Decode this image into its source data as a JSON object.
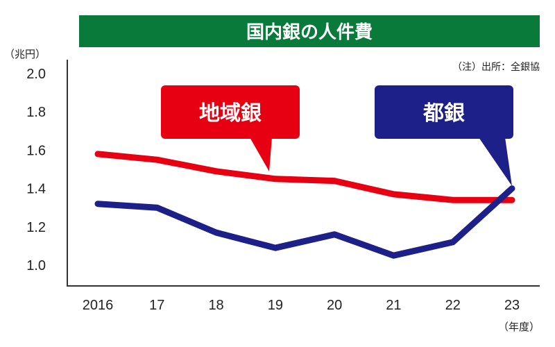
{
  "chart_data": {
    "type": "line",
    "title": "国内銀の人件費",
    "ylabel": "（兆円）",
    "xlabel": "（年度）",
    "note": "（注）出所：全銀協",
    "categories": [
      "2016",
      "17",
      "18",
      "19",
      "20",
      "21",
      "22",
      "23"
    ],
    "yticks": [
      "1.0",
      "1.2",
      "1.4",
      "1.6",
      "1.8",
      "2.0"
    ],
    "ylim": [
      0.9,
      2.1
    ],
    "grid": false,
    "series": [
      {
        "name": "地域銀",
        "color": "#e60012",
        "values": [
          1.58,
          1.55,
          1.49,
          1.45,
          1.44,
          1.37,
          1.34,
          1.34
        ]
      },
      {
        "name": "都銀",
        "color": "#1d2088",
        "values": [
          1.32,
          1.3,
          1.17,
          1.09,
          1.16,
          1.05,
          1.12,
          1.4
        ]
      }
    ]
  },
  "colors": {
    "title_bg": "#0a7a3a",
    "axis": "#333333"
  }
}
